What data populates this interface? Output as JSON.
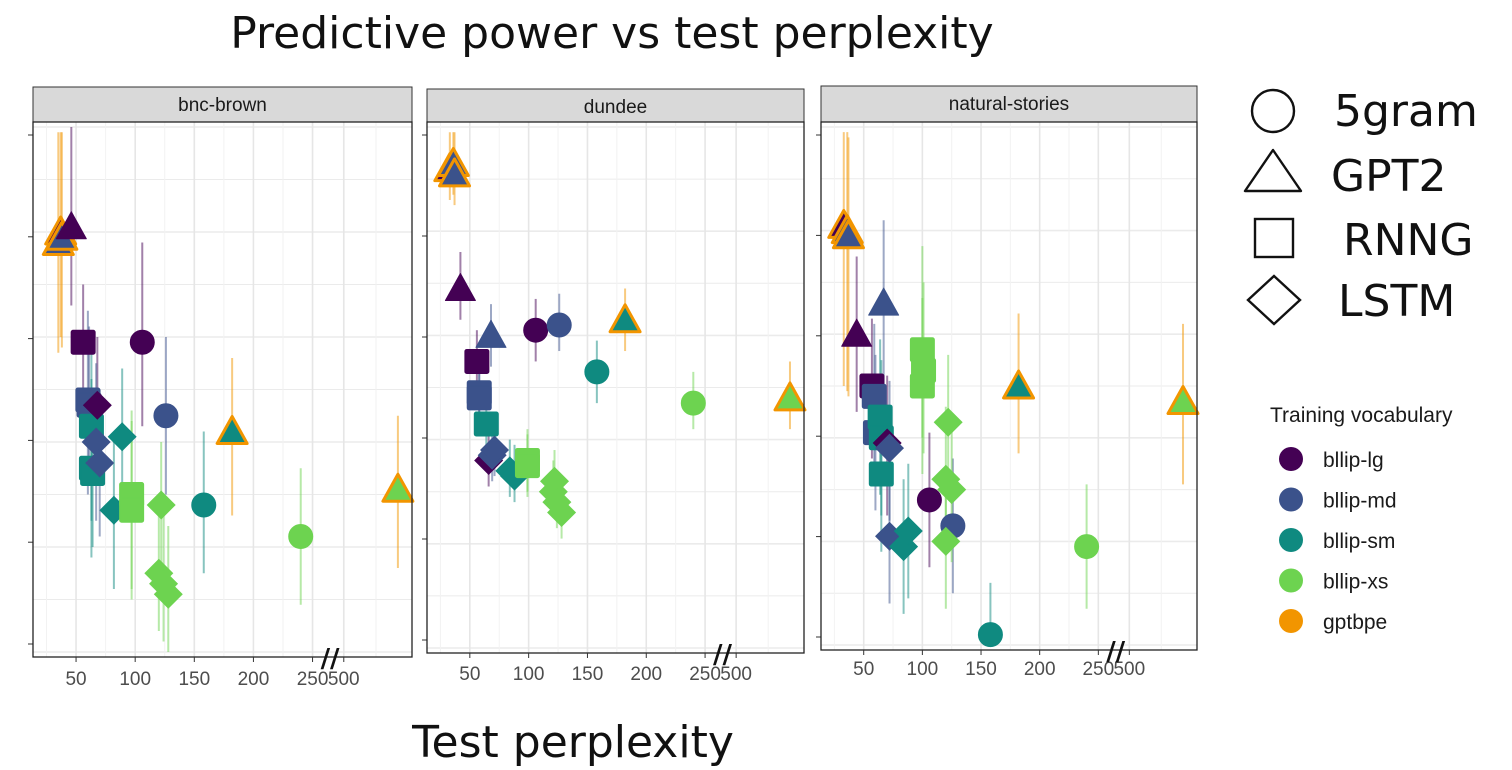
{
  "chart_data": {
    "type": "scatter",
    "title": "Predictive power vs test perplexity",
    "xlabel": "Test perplexity",
    "ylabel": "",
    "x_ticks": [
      "50",
      "100",
      "150",
      "200",
      "250",
      "500"
    ],
    "axis_break_mark": "//",
    "legend": {
      "shapes_title": "",
      "shapes": [
        {
          "name": "5gram",
          "shape": "circle"
        },
        {
          "name": "GPT2",
          "shape": "triangle"
        },
        {
          "name": "RNNG",
          "shape": "square"
        },
        {
          "name": "LSTM",
          "shape": "diamond"
        }
      ],
      "colors_title": "Training vocabulary",
      "colors": [
        {
          "name": "bllip-lg",
          "color": "#440154"
        },
        {
          "name": "bllip-md",
          "color": "#3b528b"
        },
        {
          "name": "bllip-sm",
          "color": "#0f8a80"
        },
        {
          "name": "bllip-xs",
          "color": "#6dd350"
        },
        {
          "name": "gptbpe",
          "color": "#f29500"
        }
      ]
    },
    "panels": [
      {
        "name": "bnc-brown",
        "points": [
          {
            "model": "GPT2",
            "vocab": "gptbpe",
            "fill": "bllip-md",
            "x": 35,
            "y": 0.78,
            "lo": 0.57,
            "hi": 0.99
          },
          {
            "model": "GPT2",
            "vocab": "gptbpe",
            "fill": "bllip-lg",
            "x": 37,
            "y": 0.8,
            "lo": 0.6,
            "hi": 0.99
          },
          {
            "model": "GPT2",
            "vocab": "gptbpe",
            "fill": "bllip-md",
            "x": 38,
            "y": 0.79,
            "lo": 0.58,
            "hi": 0.99
          },
          {
            "model": "GPT2",
            "vocab": "bllip-lg",
            "fill": "bllip-lg",
            "x": 46,
            "y": 0.81,
            "lo": 0.66,
            "hi": 1.0
          },
          {
            "model": "RNNG",
            "vocab": "bllip-lg",
            "fill": "bllip-lg",
            "x": 56,
            "y": 0.59,
            "lo": 0.42,
            "hi": 0.7
          },
          {
            "model": "RNNG",
            "vocab": "bllip-md",
            "fill": "bllip-md",
            "x": 60,
            "y": 0.48,
            "lo": 0.3,
            "hi": 0.65
          },
          {
            "model": "RNNG",
            "vocab": "bllip-md",
            "fill": "bllip-md",
            "x": 61,
            "y": 0.47,
            "lo": 0.32,
            "hi": 0.62
          },
          {
            "model": "RNNG",
            "vocab": "bllip-sm",
            "fill": "bllip-sm",
            "x": 63,
            "y": 0.43,
            "lo": 0.25,
            "hi": 0.58
          },
          {
            "model": "RNNG",
            "vocab": "bllip-sm",
            "fill": "bllip-sm",
            "x": 63,
            "y": 0.35,
            "lo": 0.18,
            "hi": 0.52
          },
          {
            "model": "RNNG",
            "vocab": "bllip-sm",
            "fill": "bllip-sm",
            "x": 64,
            "y": 0.34,
            "lo": 0.2,
            "hi": 0.48
          },
          {
            "model": "LSTM",
            "vocab": "bllip-lg",
            "fill": "bllip-lg",
            "x": 68,
            "y": 0.47,
            "lo": 0.33,
            "hi": 0.6
          },
          {
            "model": "LSTM",
            "vocab": "bllip-md",
            "fill": "bllip-md",
            "x": 67,
            "y": 0.4,
            "lo": 0.25,
            "hi": 0.55
          },
          {
            "model": "LSTM",
            "vocab": "bllip-md",
            "fill": "bllip-md",
            "x": 70,
            "y": 0.36,
            "lo": 0.22,
            "hi": 0.5
          },
          {
            "model": "5gram",
            "vocab": "bllip-lg",
            "fill": "bllip-lg",
            "x": 106,
            "y": 0.59,
            "lo": 0.43,
            "hi": 0.78
          },
          {
            "model": "5gram",
            "vocab": "bllip-md",
            "fill": "bllip-md",
            "x": 126,
            "y": 0.45,
            "lo": 0.3,
            "hi": 0.6
          },
          {
            "model": "LSTM",
            "vocab": "bllip-sm",
            "fill": "bllip-sm",
            "x": 89,
            "y": 0.41,
            "lo": 0.28,
            "hi": 0.54
          },
          {
            "model": "LSTM",
            "vocab": "bllip-sm",
            "fill": "bllip-sm",
            "x": 82,
            "y": 0.27,
            "lo": 0.12,
            "hi": 0.4
          },
          {
            "model": "RNNG",
            "vocab": "bllip-xs",
            "fill": "bllip-xs",
            "x": 97,
            "y": 0.3,
            "lo": 0.12,
            "hi": 0.46
          },
          {
            "model": "RNNG",
            "vocab": "bllip-xs",
            "fill": "bllip-xs",
            "x": 97,
            "y": 0.27,
            "lo": 0.1,
            "hi": 0.44
          },
          {
            "model": "LSTM",
            "vocab": "bllip-xs",
            "fill": "bllip-xs",
            "x": 122,
            "y": 0.28,
            "lo": 0.14,
            "hi": 0.4
          },
          {
            "model": "LSTM",
            "vocab": "bllip-xs",
            "fill": "bllip-xs",
            "x": 120,
            "y": 0.15,
            "lo": 0.04,
            "hi": 0.3
          },
          {
            "model": "LSTM",
            "vocab": "bllip-xs",
            "fill": "bllip-xs",
            "x": 124,
            "y": 0.13,
            "lo": 0.02,
            "hi": 0.27
          },
          {
            "model": "LSTM",
            "vocab": "bllip-xs",
            "fill": "bllip-xs",
            "x": 128,
            "y": 0.11,
            "lo": 0.0,
            "hi": 0.24
          },
          {
            "model": "5gram",
            "vocab": "bllip-sm",
            "fill": "bllip-sm",
            "x": 158,
            "y": 0.28,
            "lo": 0.15,
            "hi": 0.42
          },
          {
            "model": "GPT2",
            "vocab": "gptbpe",
            "fill": "bllip-sm",
            "x": 182,
            "y": 0.42,
            "lo": 0.26,
            "hi": 0.56
          },
          {
            "model": "5gram",
            "vocab": "bllip-xs",
            "fill": "bllip-xs",
            "x": 240,
            "y": 0.22,
            "lo": 0.09,
            "hi": 0.35
          },
          {
            "model": "GPT2",
            "vocab": "gptbpe",
            "fill": "bllip-xs",
            "x": 584,
            "y": 0.31,
            "lo": 0.16,
            "hi": 0.45
          }
        ]
      },
      {
        "name": "dundee",
        "points": [
          {
            "model": "GPT2",
            "vocab": "gptbpe",
            "fill": "bllip-lg",
            "x": 33,
            "y": 0.92,
            "lo": 0.86,
            "hi": 0.99
          },
          {
            "model": "GPT2",
            "vocab": "gptbpe",
            "fill": "bllip-md",
            "x": 36,
            "y": 0.93,
            "lo": 0.87,
            "hi": 0.99
          },
          {
            "model": "GPT2",
            "vocab": "gptbpe",
            "fill": "bllip-md",
            "x": 37,
            "y": 0.91,
            "lo": 0.85,
            "hi": 0.99
          },
          {
            "model": "GPT2",
            "vocab": "bllip-lg",
            "fill": "bllip-lg",
            "x": 42,
            "y": 0.69,
            "lo": 0.63,
            "hi": 0.76
          },
          {
            "model": "GPT2",
            "vocab": "bllip-md",
            "fill": "bllip-md",
            "x": 68,
            "y": 0.6,
            "lo": 0.54,
            "hi": 0.66
          },
          {
            "model": "RNNG",
            "vocab": "bllip-lg",
            "fill": "bllip-lg",
            "x": 56,
            "y": 0.55,
            "lo": 0.5,
            "hi": 0.61
          },
          {
            "model": "RNNG",
            "vocab": "bllip-md",
            "fill": "bllip-md",
            "x": 58,
            "y": 0.49,
            "lo": 0.43,
            "hi": 0.55
          },
          {
            "model": "RNNG",
            "vocab": "bllip-md",
            "fill": "bllip-md",
            "x": 58,
            "y": 0.48,
            "lo": 0.42,
            "hi": 0.54
          },
          {
            "model": "RNNG",
            "vocab": "bllip-sm",
            "fill": "bllip-sm",
            "x": 64,
            "y": 0.43,
            "lo": 0.37,
            "hi": 0.49
          },
          {
            "model": "LSTM",
            "vocab": "bllip-lg",
            "fill": "bllip-lg",
            "x": 66,
            "y": 0.36,
            "lo": 0.31,
            "hi": 0.42
          },
          {
            "model": "LSTM",
            "vocab": "bllip-md",
            "fill": "bllip-md",
            "x": 69,
            "y": 0.37,
            "lo": 0.32,
            "hi": 0.43
          },
          {
            "model": "LSTM",
            "vocab": "bllip-md",
            "fill": "bllip-md",
            "x": 71,
            "y": 0.38,
            "lo": 0.33,
            "hi": 0.44
          },
          {
            "model": "LSTM",
            "vocab": "bllip-sm",
            "fill": "bllip-sm",
            "x": 84,
            "y": 0.34,
            "lo": 0.29,
            "hi": 0.4
          },
          {
            "model": "LSTM",
            "vocab": "bllip-sm",
            "fill": "bllip-sm",
            "x": 88,
            "y": 0.33,
            "lo": 0.28,
            "hi": 0.39
          },
          {
            "model": "RNNG",
            "vocab": "bllip-xs",
            "fill": "bllip-xs",
            "x": 99,
            "y": 0.36,
            "lo": 0.3,
            "hi": 0.42
          },
          {
            "model": "RNNG",
            "vocab": "bllip-xs",
            "fill": "bllip-xs",
            "x": 99,
            "y": 0.35,
            "lo": 0.29,
            "hi": 0.41
          },
          {
            "model": "5gram",
            "vocab": "bllip-lg",
            "fill": "bllip-lg",
            "x": 106,
            "y": 0.61,
            "lo": 0.55,
            "hi": 0.67
          },
          {
            "model": "5gram",
            "vocab": "bllip-md",
            "fill": "bllip-md",
            "x": 126,
            "y": 0.62,
            "lo": 0.57,
            "hi": 0.68
          },
          {
            "model": "LSTM",
            "vocab": "bllip-xs",
            "fill": "bllip-xs",
            "x": 122,
            "y": 0.32,
            "lo": 0.27,
            "hi": 0.38
          },
          {
            "model": "LSTM",
            "vocab": "bllip-xs",
            "fill": "bllip-xs",
            "x": 121,
            "y": 0.3,
            "lo": 0.25,
            "hi": 0.36
          },
          {
            "model": "LSTM",
            "vocab": "bllip-xs",
            "fill": "bllip-xs",
            "x": 124,
            "y": 0.28,
            "lo": 0.23,
            "hi": 0.34
          },
          {
            "model": "LSTM",
            "vocab": "bllip-xs",
            "fill": "bllip-xs",
            "x": 128,
            "y": 0.26,
            "lo": 0.21,
            "hi": 0.32
          },
          {
            "model": "5gram",
            "vocab": "bllip-sm",
            "fill": "bllip-sm",
            "x": 158,
            "y": 0.53,
            "lo": 0.47,
            "hi": 0.59
          },
          {
            "model": "GPT2",
            "vocab": "gptbpe",
            "fill": "bllip-sm",
            "x": 182,
            "y": 0.63,
            "lo": 0.57,
            "hi": 0.69
          },
          {
            "model": "5gram",
            "vocab": "bllip-xs",
            "fill": "bllip-xs",
            "x": 240,
            "y": 0.47,
            "lo": 0.42,
            "hi": 0.53
          },
          {
            "model": "GPT2",
            "vocab": "gptbpe",
            "fill": "bllip-xs",
            "x": 584,
            "y": 0.48,
            "lo": 0.42,
            "hi": 0.55
          }
        ]
      },
      {
        "name": "natural-stories",
        "points": [
          {
            "model": "GPT2",
            "vocab": "gptbpe",
            "fill": "bllip-lg",
            "x": 33,
            "y": 0.81,
            "lo": 0.5,
            "hi": 0.99
          },
          {
            "model": "GPT2",
            "vocab": "gptbpe",
            "fill": "bllip-md",
            "x": 36,
            "y": 0.8,
            "lo": 0.49,
            "hi": 0.99
          },
          {
            "model": "GPT2",
            "vocab": "gptbpe",
            "fill": "bllip-md",
            "x": 37,
            "y": 0.79,
            "lo": 0.48,
            "hi": 0.98
          },
          {
            "model": "GPT2",
            "vocab": "bllip-lg",
            "fill": "bllip-lg",
            "x": 44,
            "y": 0.6,
            "lo": 0.45,
            "hi": 0.75
          },
          {
            "model": "GPT2",
            "vocab": "bllip-md",
            "fill": "bllip-md",
            "x": 67,
            "y": 0.66,
            "lo": 0.5,
            "hi": 0.82
          },
          {
            "model": "RNNG",
            "vocab": "bllip-lg",
            "fill": "bllip-lg",
            "x": 57,
            "y": 0.5,
            "lo": 0.36,
            "hi": 0.63
          },
          {
            "model": "RNNG",
            "vocab": "bllip-md",
            "fill": "bllip-md",
            "x": 59,
            "y": 0.48,
            "lo": 0.33,
            "hi": 0.62
          },
          {
            "model": "RNNG",
            "vocab": "bllip-md",
            "fill": "bllip-md",
            "x": 60,
            "y": 0.41,
            "lo": 0.26,
            "hi": 0.56
          },
          {
            "model": "RNNG",
            "vocab": "bllip-sm",
            "fill": "bllip-sm",
            "x": 64,
            "y": 0.44,
            "lo": 0.29,
            "hi": 0.59
          },
          {
            "model": "RNNG",
            "vocab": "bllip-sm",
            "fill": "bllip-sm",
            "x": 65,
            "y": 0.4,
            "lo": 0.25,
            "hi": 0.55
          },
          {
            "model": "RNNG",
            "vocab": "bllip-sm",
            "fill": "bllip-sm",
            "x": 65,
            "y": 0.33,
            "lo": 0.18,
            "hi": 0.48
          },
          {
            "model": "LSTM",
            "vocab": "bllip-lg",
            "fill": "bllip-lg",
            "x": 70,
            "y": 0.39,
            "lo": 0.25,
            "hi": 0.52
          },
          {
            "model": "LSTM",
            "vocab": "bllip-md",
            "fill": "bllip-md",
            "x": 72,
            "y": 0.38,
            "lo": 0.24,
            "hi": 0.51
          },
          {
            "model": "LSTM",
            "vocab": "bllip-md",
            "fill": "bllip-md",
            "x": 72,
            "y": 0.21,
            "lo": 0.08,
            "hi": 0.34
          },
          {
            "model": "LSTM",
            "vocab": "bllip-sm",
            "fill": "bllip-sm",
            "x": 84,
            "y": 0.19,
            "lo": 0.06,
            "hi": 0.32
          },
          {
            "model": "LSTM",
            "vocab": "bllip-sm",
            "fill": "bllip-sm",
            "x": 88,
            "y": 0.22,
            "lo": 0.09,
            "hi": 0.35
          },
          {
            "model": "RNNG",
            "vocab": "bllip-xs",
            "fill": "bllip-xs",
            "x": 100,
            "y": 0.57,
            "lo": 0.4,
            "hi": 0.77
          },
          {
            "model": "RNNG",
            "vocab": "bllip-xs",
            "fill": "bllip-xs",
            "x": 101,
            "y": 0.53,
            "lo": 0.37,
            "hi": 0.7
          },
          {
            "model": "RNNG",
            "vocab": "bllip-xs",
            "fill": "bllip-xs",
            "x": 100,
            "y": 0.5,
            "lo": 0.33,
            "hi": 0.67
          },
          {
            "model": "5gram",
            "vocab": "bllip-lg",
            "fill": "bllip-lg",
            "x": 106,
            "y": 0.28,
            "lo": 0.15,
            "hi": 0.41
          },
          {
            "model": "5gram",
            "vocab": "bllip-md",
            "fill": "bllip-md",
            "x": 126,
            "y": 0.23,
            "lo": 0.1,
            "hi": 0.36
          },
          {
            "model": "LSTM",
            "vocab": "bllip-xs",
            "fill": "bllip-xs",
            "x": 122,
            "y": 0.43,
            "lo": 0.3,
            "hi": 0.56
          },
          {
            "model": "LSTM",
            "vocab": "bllip-xs",
            "fill": "bllip-xs",
            "x": 120,
            "y": 0.32,
            "lo": 0.18,
            "hi": 0.46
          },
          {
            "model": "LSTM",
            "vocab": "bllip-xs",
            "fill": "bllip-xs",
            "x": 125,
            "y": 0.3,
            "lo": 0.16,
            "hi": 0.44
          },
          {
            "model": "LSTM",
            "vocab": "bllip-xs",
            "fill": "bllip-xs",
            "x": 120,
            "y": 0.2,
            "lo": 0.07,
            "hi": 0.34
          },
          {
            "model": "5gram",
            "vocab": "bllip-sm",
            "fill": "bllip-sm",
            "x": 158,
            "y": 0.02,
            "lo": 0.0,
            "hi": 0.12
          },
          {
            "model": "GPT2",
            "vocab": "gptbpe",
            "fill": "bllip-sm",
            "x": 182,
            "y": 0.5,
            "lo": 0.37,
            "hi": 0.64
          },
          {
            "model": "5gram",
            "vocab": "bllip-xs",
            "fill": "bllip-xs",
            "x": 240,
            "y": 0.19,
            "lo": 0.07,
            "hi": 0.31
          },
          {
            "model": "GPT2",
            "vocab": "gptbpe",
            "fill": "bllip-xs",
            "x": 584,
            "y": 0.47,
            "lo": 0.31,
            "hi": 0.62
          }
        ]
      }
    ]
  }
}
